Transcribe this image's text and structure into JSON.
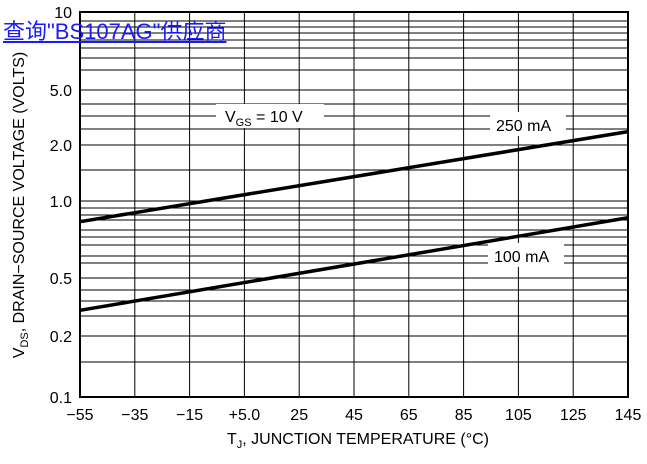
{
  "link_text": "查询\"BS107AG\"供应商",
  "chart_data": {
    "type": "line",
    "xlabel_main": "T",
    "xlabel_sub": "J",
    "xlabel_rest": ", JUNCTION TEMPERATURE (°C)",
    "ylabel_main": "V",
    "ylabel_sub": "DS",
    "ylabel_rest": ", DRAIN−SOURCE VOLTAGE (VOLTS)",
    "xlim": [
      -55,
      145
    ],
    "x_ticks": [
      "−55",
      "−35",
      "−15",
      "+5.0",
      "25",
      "45",
      "65",
      "85",
      "105",
      "125",
      "145"
    ],
    "y_ticks": [
      "0.1",
      "0.2",
      "0.5",
      "1.0",
      "2.0",
      "5.0",
      "10"
    ],
    "x": [
      -55,
      145
    ],
    "series": [
      {
        "name": "250 mA",
        "values": [
          0.83,
          2.5
        ]
      },
      {
        "name": "100 mA",
        "values": [
          0.3,
          0.86
        ]
      }
    ],
    "annotation": {
      "main": "V",
      "sub": "GS",
      "rest": " = 10 V"
    },
    "grid": true
  }
}
